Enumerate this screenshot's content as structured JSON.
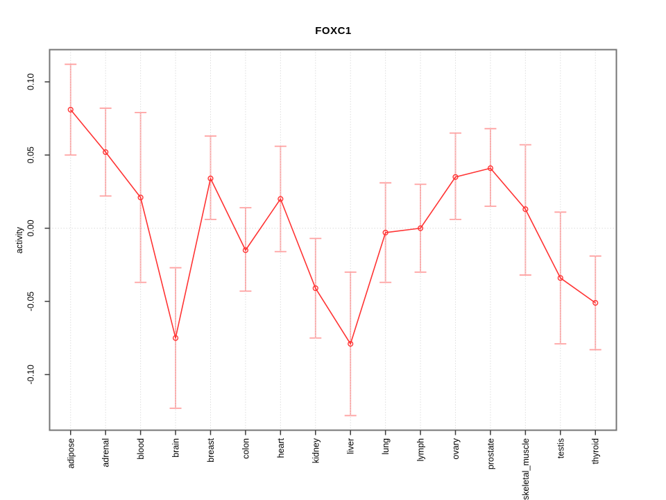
{
  "chart_data": {
    "type": "line",
    "title": "FOXC1",
    "xlabel": "",
    "ylabel": "activity",
    "legend": "none",
    "grid": {
      "vertical_dotted_per_category": true,
      "zero_line_dotted": true
    },
    "categories": [
      "adipose",
      "adrenal",
      "blood",
      "brain",
      "breast",
      "colon",
      "heart",
      "kidney",
      "liver",
      "lung",
      "lymph",
      "ovary",
      "prostate",
      "skeletal_muscle",
      "testis",
      "thyroid"
    ],
    "series": [
      {
        "name": "activity",
        "marker": "open-circle",
        "values": [
          0.081,
          0.052,
          0.021,
          -0.075,
          0.034,
          -0.015,
          0.02,
          -0.041,
          -0.079,
          -0.003,
          0.0,
          0.035,
          0.041,
          0.013,
          -0.034,
          -0.051
        ],
        "lower": [
          0.05,
          0.022,
          -0.037,
          -0.123,
          0.006,
          -0.043,
          -0.016,
          -0.075,
          -0.128,
          -0.037,
          -0.03,
          0.006,
          0.015,
          -0.032,
          -0.079,
          -0.083
        ],
        "upper": [
          0.112,
          0.082,
          0.079,
          -0.027,
          0.063,
          0.014,
          0.056,
          -0.007,
          -0.03,
          0.031,
          0.03,
          0.065,
          0.068,
          0.057,
          0.011,
          -0.019
        ]
      }
    ],
    "yticks": [
      {
        "label": "0.10",
        "value": 0.1
      },
      {
        "label": "0.05",
        "value": 0.05
      },
      {
        "label": "0.00",
        "value": 0.0
      },
      {
        "label": "-0.05",
        "value": -0.05
      },
      {
        "label": "-0.10",
        "value": -0.1
      }
    ],
    "ylim": [
      -0.138,
      0.122
    ],
    "colors": {
      "series": "#ff3333",
      "error_bar": "#ffa0a0",
      "grid": "#dcdcdc",
      "frame": "#757575",
      "tick": "#3a3a3a",
      "text": "#000000",
      "background": "#ffffff"
    }
  }
}
